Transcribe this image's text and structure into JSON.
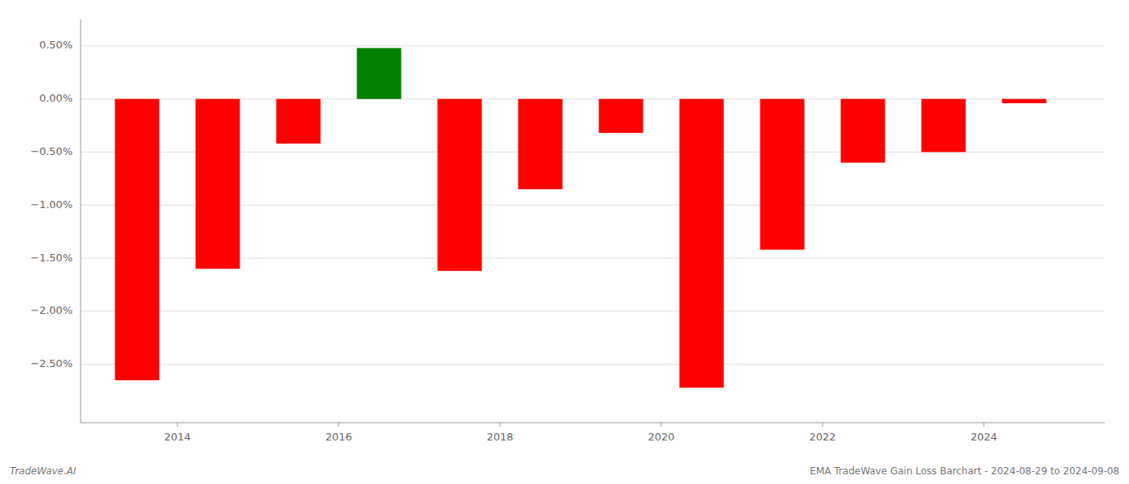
{
  "chart_data": {
    "type": "bar",
    "x": [
      2013.5,
      2014.5,
      2015.5,
      2016.5,
      2017.5,
      2018.5,
      2019.5,
      2020.5,
      2021.5,
      2022.5,
      2023.5,
      2024.5
    ],
    "values": [
      -2.65,
      -1.6,
      -0.42,
      0.48,
      -1.62,
      -0.85,
      -0.32,
      -2.72,
      -1.42,
      -0.6,
      -0.5,
      -0.04
    ],
    "colors": [
      "#ff0000",
      "#ff0000",
      "#ff0000",
      "#008000",
      "#ff0000",
      "#ff0000",
      "#ff0000",
      "#ff0000",
      "#ff0000",
      "#ff0000",
      "#ff0000",
      "#ff0000"
    ],
    "xlim": [
      2012.8,
      2025.5
    ],
    "ylim": [
      -3.05,
      0.75
    ],
    "xticks": [
      2014,
      2016,
      2018,
      2020,
      2022,
      2024
    ],
    "yticks": [
      {
        "value": -2.5,
        "label": "−2.50%"
      },
      {
        "value": -2.0,
        "label": "−2.00%"
      },
      {
        "value": -1.5,
        "label": "−1.50%"
      },
      {
        "value": -1.0,
        "label": "−1.00%"
      },
      {
        "value": -0.5,
        "label": "−0.50%"
      },
      {
        "value": 0.0,
        "label": "0.00%"
      },
      {
        "value": 0.5,
        "label": "0.50%"
      }
    ],
    "grid": true,
    "annotations": [
      "TradeWave.AI",
      "EMA TradeWave Gain Loss Barchart - 2024-08-29 to 2024-09-08"
    ]
  }
}
